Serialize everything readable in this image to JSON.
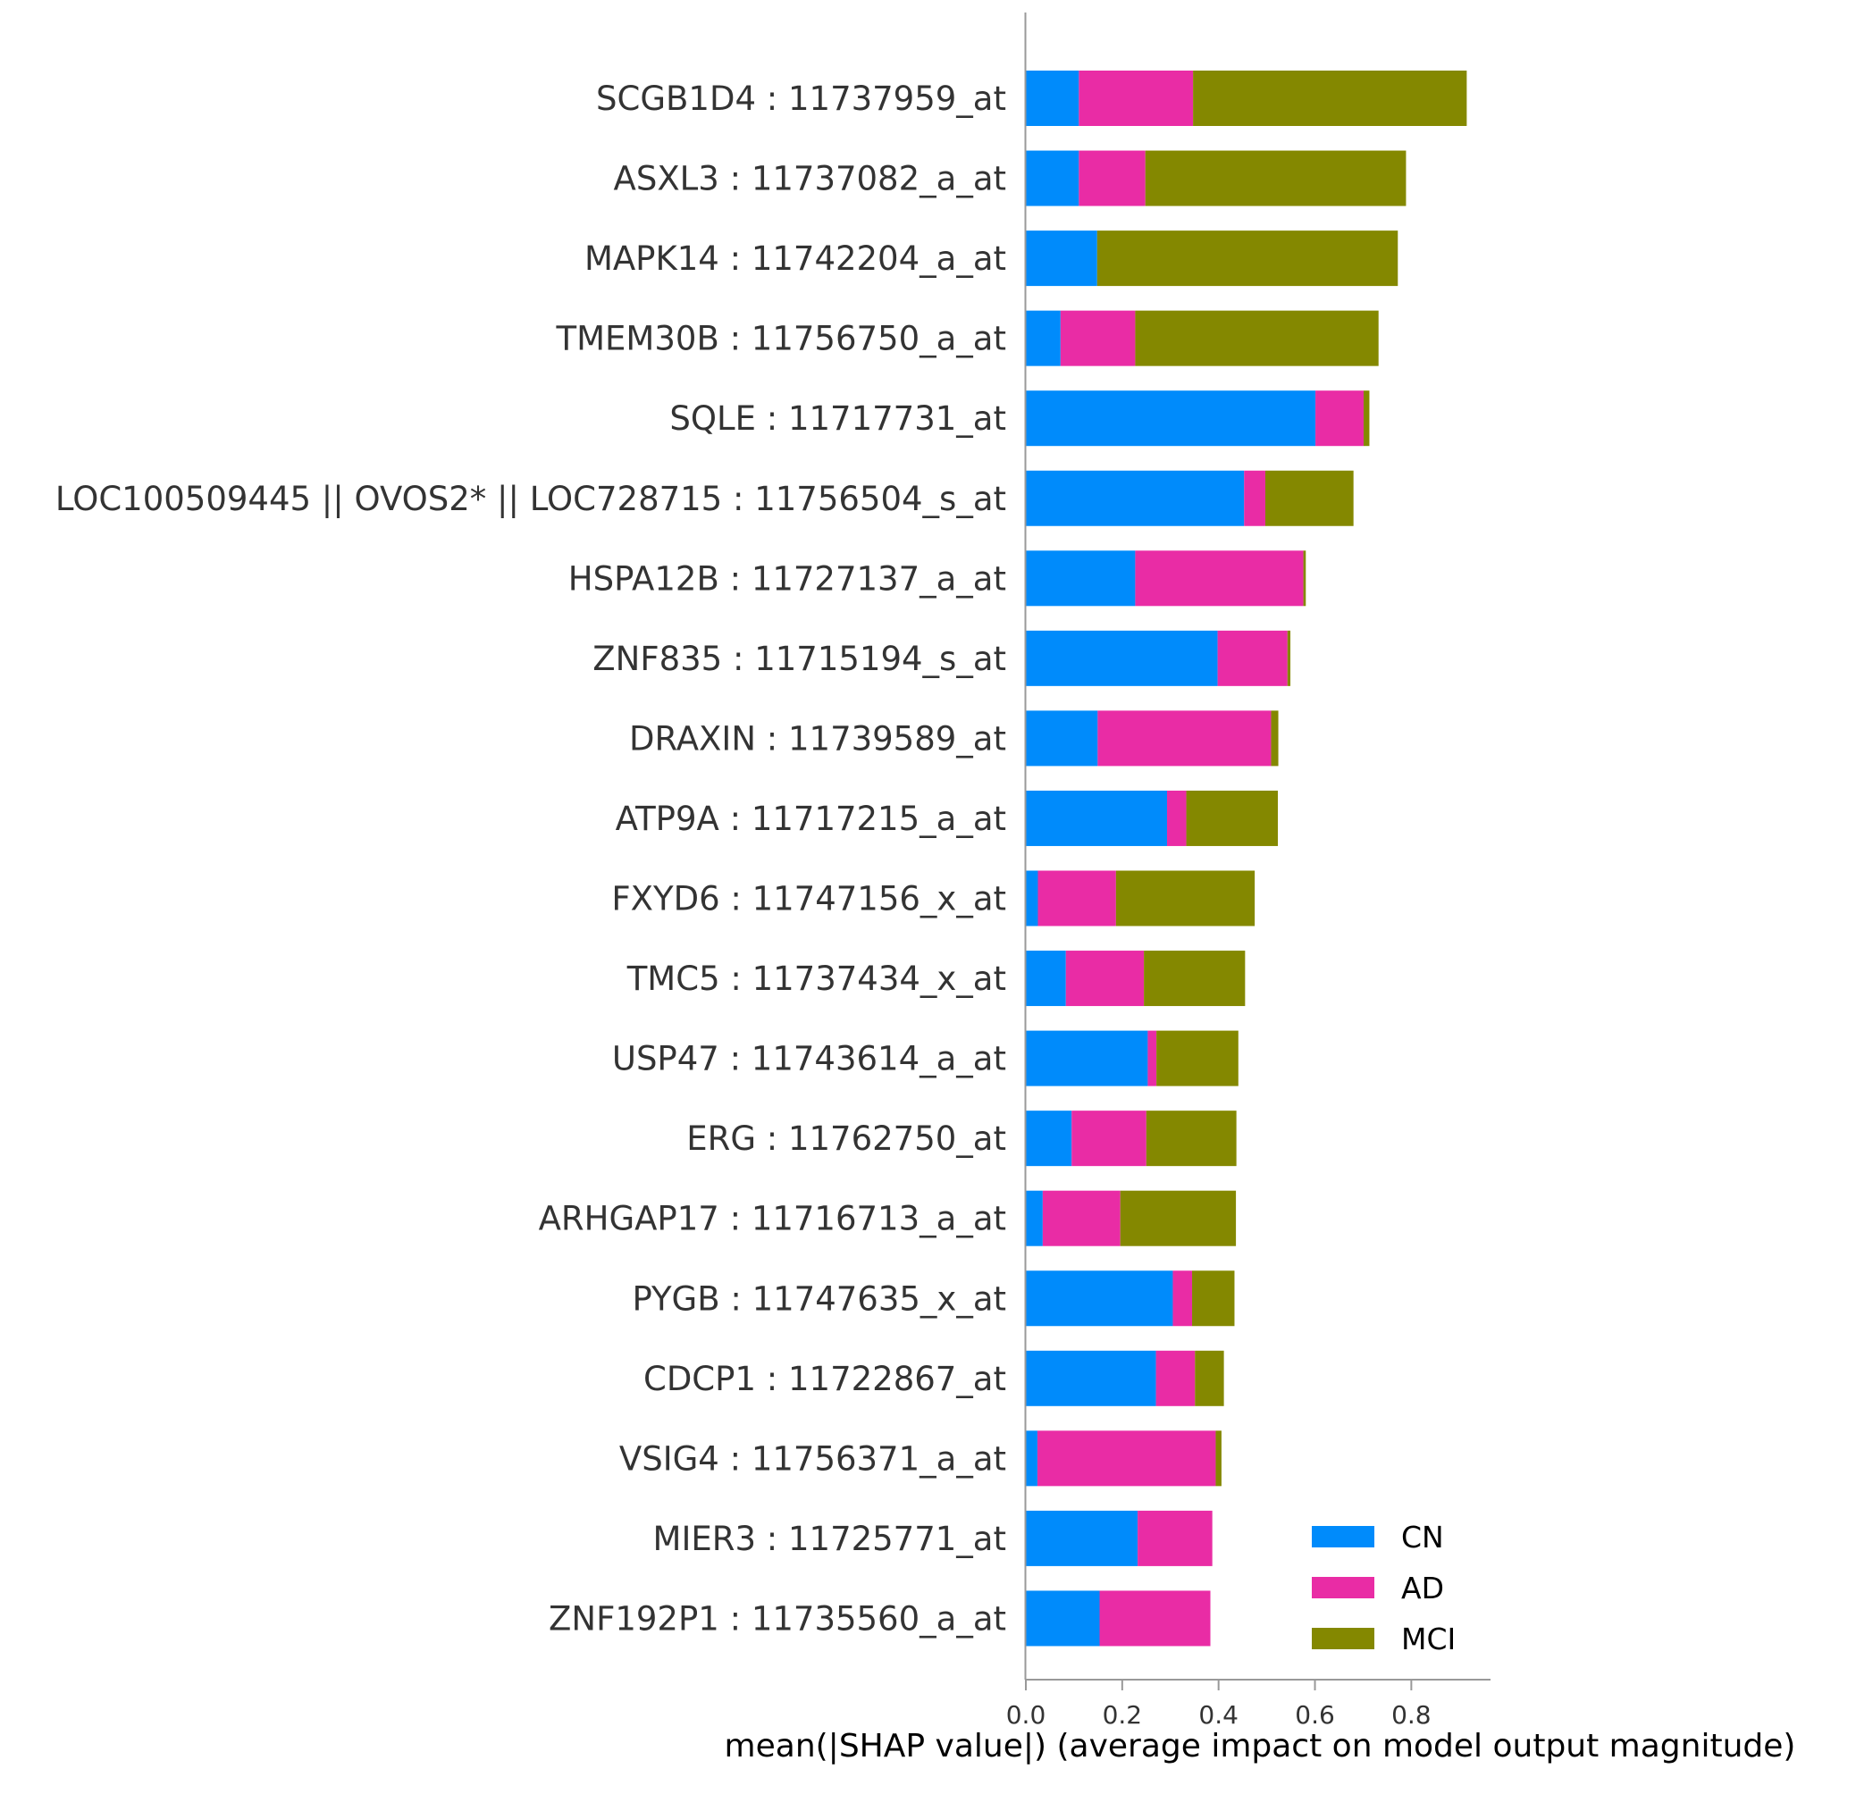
{
  "chart_data": {
    "type": "bar",
    "stacked": true,
    "orientation": "horizontal",
    "categories": [
      "SCGB1D4 : 11737959_at",
      "ASXL3 : 11737082_a_at",
      "MAPK14 : 11742204_a_at",
      "TMEM30B : 11756750_a_at",
      "SQLE : 11717731_at",
      "LOC100509445 || OVOS2* || LOC728715 : 11756504_s_at",
      "HSPA12B : 11727137_a_at",
      "ZNF835 : 11715194_s_at",
      "DRAXIN : 11739589_at",
      "ATP9A : 11717215_a_at",
      "FXYD6 : 11747156_x_at",
      "TMC5 : 11737434_x_at",
      "USP47 : 11743614_a_at",
      "ERG : 11762750_at",
      "ARHGAP17 : 11716713_a_at",
      "PYGB : 11747635_x_at",
      "CDCP1 : 11722867_at",
      "VSIG4 : 11756371_a_at",
      "MIER3 : 11725771_at",
      "ZNF192P1 : 11735560_a_at"
    ],
    "series": [
      {
        "name": "CN",
        "color": "#008bfb",
        "values": [
          0.11,
          0.11,
          0.148,
          0.072,
          0.601,
          0.453,
          0.227,
          0.398,
          0.149,
          0.293,
          0.025,
          0.083,
          0.253,
          0.095,
          0.035,
          0.305,
          0.27,
          0.024,
          0.232,
          0.153
        ]
      },
      {
        "name": "AD",
        "color": "#e92ca5",
        "values": [
          0.237,
          0.138,
          0.0,
          0.155,
          0.1,
          0.044,
          0.349,
          0.145,
          0.36,
          0.04,
          0.162,
          0.162,
          0.018,
          0.155,
          0.161,
          0.04,
          0.081,
          0.37,
          0.155,
          0.23
        ]
      },
      {
        "name": "MCI",
        "color": "#848800",
        "values": [
          0.568,
          0.541,
          0.624,
          0.505,
          0.012,
          0.183,
          0.005,
          0.006,
          0.015,
          0.19,
          0.288,
          0.21,
          0.17,
          0.187,
          0.24,
          0.088,
          0.06,
          0.012,
          0.0,
          0.0
        ]
      }
    ],
    "xlabel": "mean(|SHAP value|) (average impact on model output magnitude)",
    "ylabel": "",
    "title": "",
    "xlim": [
      0,
      0.97
    ],
    "xticks": [
      "0.0",
      "0.2",
      "0.4",
      "0.6",
      "0.8"
    ],
    "legend": {
      "position": "bottom-right",
      "entries": [
        "CN",
        "AD",
        "MCI"
      ]
    },
    "grid": false
  }
}
